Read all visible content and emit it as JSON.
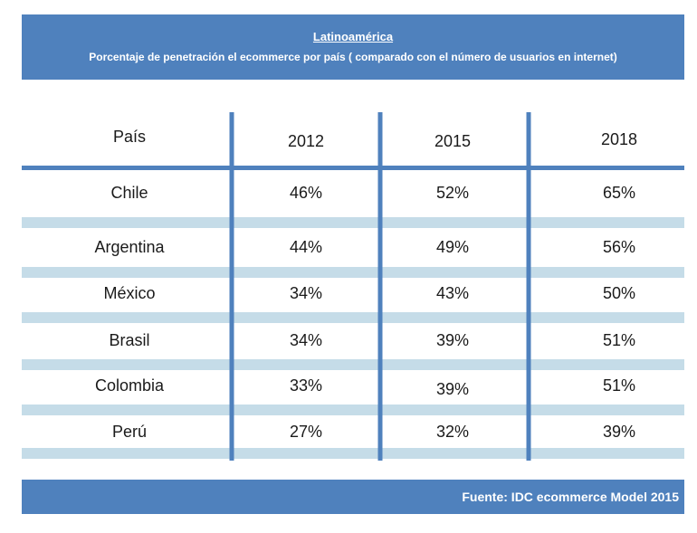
{
  "header": {
    "title": "Latinoamérica",
    "subtitle": "Porcentaje de penetración el ecommerce por país ( comparado con el número de usuarios en internet)"
  },
  "footer": {
    "source": "Fuente: IDC ecommerce Model 2015"
  },
  "colors": {
    "band": "#4f81bd",
    "divider": "#4f81bd",
    "stripe": "#c5dce8",
    "text": "#1a1a1a"
  },
  "chart_data": {
    "type": "table",
    "columns": [
      "País",
      "2012",
      "2015",
      "2018"
    ],
    "rows": [
      {
        "country": "Chile",
        "values": [
          "46%",
          "52%",
          "65%"
        ]
      },
      {
        "country": "Argentina",
        "values": [
          "44%",
          "49%",
          "56%"
        ]
      },
      {
        "country": "México",
        "values": [
          "34%",
          "43%",
          "50%"
        ]
      },
      {
        "country": "Brasil",
        "values": [
          "34%",
          "39%",
          "51%"
        ]
      },
      {
        "country": "Colombia",
        "values": [
          "33%",
          "39%",
          "51%"
        ]
      },
      {
        "country": "Perú",
        "values": [
          "27%",
          "32%",
          "39%"
        ]
      }
    ]
  }
}
